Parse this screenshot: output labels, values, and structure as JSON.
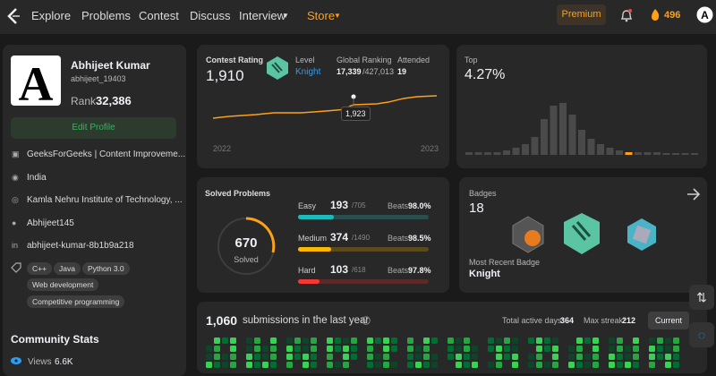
{
  "nav": {
    "items": [
      "Explore",
      "Problems",
      "Contest",
      "Discuss",
      "Interview",
      "Store"
    ],
    "premium": "Premium",
    "coins": "496"
  },
  "profile": {
    "name": "Abhijeet Kumar",
    "username": "abhijeet_19403",
    "rank_label": "Rank",
    "rank": "32,386",
    "edit": "Edit Profile",
    "details": [
      "GeeksForGeeks | Content Improveme...",
      "India",
      "Kamla Nehru Institute of Technology, ...",
      "Abhijeet145",
      "abhijeet-kumar-8b1b9a218"
    ],
    "skills": [
      "C++",
      "Java",
      "Python 3.0",
      "Web development",
      "Competitive programming"
    ],
    "community_title": "Community Stats",
    "views_label": "Views",
    "views": "6.6K"
  },
  "contest": {
    "rating_label": "Contest Rating",
    "rating": "1,910",
    "level_label": "Level",
    "level": "Knight",
    "ranking_label": "Global Ranking",
    "ranking": "17,339",
    "ranking_total": "/427,013",
    "attended_label": "Attended",
    "attended": "19",
    "tooltip": "1,923",
    "x_start": "2022",
    "x_end": "2023",
    "top_label": "Top",
    "top": "4.27%"
  },
  "solved": {
    "title": "Solved Problems",
    "count": "670",
    "label": "Solved",
    "beats_label": "Beats",
    "rows": [
      {
        "name": "Easy",
        "solved": "193",
        "total": "/705",
        "beats": "98.0%"
      },
      {
        "name": "Medium",
        "solved": "374",
        "total": "/1490",
        "beats": "98.5%"
      },
      {
        "name": "Hard",
        "solved": "103",
        "total": "/618",
        "beats": "97.8%"
      }
    ]
  },
  "badges": {
    "title": "Badges",
    "count": "18",
    "recent_label": "Most Recent Badge",
    "recent": "Knight"
  },
  "submissions": {
    "count": "1,060",
    "text": "submissions in the last year",
    "active_days": "Total active days:",
    "active_days_value": "364",
    "max_streak": "Max streak:",
    "max_streak_value": "212",
    "button": "Current"
  }
}
